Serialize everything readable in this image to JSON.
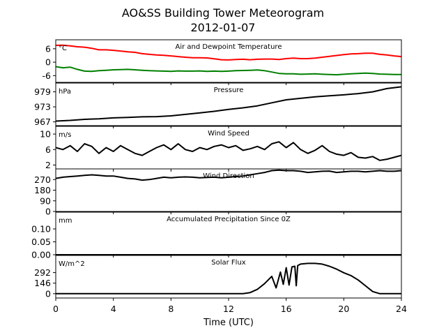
{
  "title": "AO&SS Building Tower Meteorogram",
  "subtitle": "2012-01-07",
  "chart_data": {
    "type": "line",
    "xlabel": "Time (UTC)",
    "xlim": [
      0,
      24
    ],
    "xticks": [
      0,
      4,
      8,
      12,
      16,
      20,
      24
    ],
    "panels": [
      {
        "title": "Air and Dewpoint Temperature",
        "unit": "°C",
        "ylim": [
          -9,
          10
        ],
        "yticks": [
          6,
          0,
          -6
        ],
        "series": [
          {
            "color": "#ff0000",
            "x": [
              0,
              0.5,
              1,
              1.5,
              2,
              2.5,
              3,
              3.5,
              4,
              4.5,
              5,
              5.5,
              6,
              6.5,
              7,
              7.5,
              8,
              8.5,
              9,
              9.5,
              10,
              10.5,
              11,
              11.5,
              12,
              12.5,
              13,
              13.5,
              14,
              14.5,
              15,
              15.5,
              16,
              16.5,
              17,
              17.5,
              18,
              18.5,
              19,
              19.5,
              20,
              20.5,
              21,
              21.5,
              22,
              22.5,
              23,
              23.5,
              24
            ],
            "y": [
              7.5,
              7.6,
              7.3,
              6.9,
              6.7,
              6.2,
              5.5,
              5.5,
              5.3,
              5.0,
              4.6,
              4.4,
              3.8,
              3.5,
              3.2,
              3.1,
              2.8,
              2.5,
              2.2,
              2.0,
              2.0,
              1.9,
              1.5,
              1.1,
              1.0,
              1.2,
              1.3,
              1.1,
              1.3,
              1.4,
              1.4,
              1.2,
              1.6,
              1.8,
              1.6,
              1.6,
              1.8,
              2.2,
              2.6,
              3.0,
              3.4,
              3.7,
              3.8,
              4.0,
              4.0,
              3.5,
              3.2,
              2.8,
              2.5
            ]
          },
          {
            "color": "#008000",
            "x": [
              0,
              0.5,
              1,
              1.5,
              2,
              2.5,
              3,
              3.5,
              4,
              4.5,
              5,
              5.5,
              6,
              6.5,
              7,
              7.5,
              8,
              8.5,
              9,
              9.5,
              10,
              10.5,
              11,
              11.5,
              12,
              12.5,
              13,
              13.5,
              14,
              14.5,
              15,
              15.5,
              16,
              16.5,
              17,
              17.5,
              18,
              18.5,
              19,
              19.5,
              20,
              20.5,
              21,
              21.5,
              22,
              22.5,
              23,
              23.5,
              24
            ],
            "y": [
              -2.0,
              -2.5,
              -2.2,
              -3.2,
              -4.0,
              -4.1,
              -3.8,
              -3.6,
              -3.4,
              -3.3,
              -3.2,
              -3.4,
              -3.6,
              -3.8,
              -3.9,
              -4.0,
              -4.1,
              -3.9,
              -4.0,
              -4.0,
              -3.9,
              -4.1,
              -4.0,
              -4.1,
              -4.0,
              -3.8,
              -3.7,
              -3.6,
              -3.5,
              -3.8,
              -4.4,
              -5.0,
              -5.2,
              -5.2,
              -5.4,
              -5.3,
              -5.2,
              -5.4,
              -5.5,
              -5.6,
              -5.4,
              -5.2,
              -5.0,
              -4.9,
              -5.0,
              -5.3,
              -5.4,
              -5.5,
              -5.5
            ]
          }
        ]
      },
      {
        "title": "Pressure",
        "unit": "hPa",
        "ylim": [
          965.5,
          982.5
        ],
        "yticks": [
          979,
          973,
          967
        ],
        "series": [
          {
            "color": "#000000",
            "x": [
              0,
              1,
              2,
              3,
              4,
              5,
              6,
              7,
              8,
              9,
              10,
              11,
              12,
              13,
              14,
              15,
              16,
              17,
              18,
              19,
              20,
              21,
              22,
              23,
              24
            ],
            "y": [
              967.3,
              967.6,
              968.0,
              968.2,
              968.6,
              968.8,
              969.0,
              969.1,
              969.4,
              970.0,
              970.6,
              971.2,
              972.0,
              972.6,
              973.4,
              974.6,
              975.8,
              976.4,
              977.0,
              977.4,
              977.8,
              978.3,
              979.0,
              980.3,
              981.0
            ]
          }
        ]
      },
      {
        "title": "Wind Speed",
        "unit": "m/s",
        "ylim": [
          1,
          12
        ],
        "yticks": [
          10,
          6,
          2
        ],
        "series": [
          {
            "color": "#000000",
            "x": [
              0,
              0.5,
              1,
              1.5,
              2,
              2.5,
              3,
              3.5,
              4,
              4.5,
              5,
              5.5,
              6,
              6.5,
              7,
              7.5,
              8,
              8.5,
              9,
              9.5,
              10,
              10.5,
              11,
              11.5,
              12,
              12.5,
              13,
              13.5,
              14,
              14.5,
              15,
              15.5,
              16,
              16.5,
              17,
              17.5,
              18,
              18.5,
              19,
              19.5,
              20,
              20.5,
              21,
              21.5,
              22,
              22.5,
              23,
              23.5,
              24
            ],
            "y": [
              6.5,
              6.0,
              7.0,
              5.5,
              7.5,
              6.8,
              5.0,
              6.5,
              5.5,
              7.0,
              6.0,
              5.0,
              4.5,
              5.5,
              6.5,
              7.2,
              6.0,
              7.5,
              6.0,
              5.5,
              6.5,
              6.0,
              6.8,
              7.2,
              6.5,
              7.0,
              5.8,
              6.2,
              6.8,
              6.0,
              7.5,
              8.0,
              6.5,
              7.8,
              6.0,
              5.0,
              5.8,
              7.0,
              5.5,
              4.8,
              4.5,
              5.2,
              4.0,
              3.8,
              4.2,
              3.2,
              3.5,
              4.0,
              4.5
            ]
          }
        ]
      },
      {
        "title": "Wind Direction",
        "unit": "",
        "ylim": [
          0,
          360
        ],
        "yticks": [
          270,
          180,
          90,
          0
        ],
        "series": [
          {
            "color": "#000000",
            "x": [
              0,
              0.5,
              1,
              1.5,
              2,
              2.5,
              3,
              3.5,
              4,
              4.5,
              5,
              5.5,
              6,
              6.5,
              7,
              7.5,
              8,
              8.5,
              9,
              9.5,
              10,
              10.5,
              11,
              11.5,
              12,
              12.5,
              13,
              13.5,
              14,
              14.5,
              15,
              15.5,
              16,
              16.5,
              17,
              17.5,
              18,
              18.5,
              19,
              19.5,
              20,
              20.5,
              21,
              21.5,
              22,
              22.5,
              23,
              23.5,
              24
            ],
            "y": [
              280,
              290,
              295,
              300,
              305,
              310,
              305,
              300,
              300,
              290,
              280,
              275,
              265,
              270,
              280,
              290,
              285,
              290,
              292,
              290,
              285,
              288,
              290,
              285,
              290,
              295,
              300,
              310,
              320,
              330,
              345,
              350,
              345,
              345,
              340,
              330,
              335,
              340,
              342,
              330,
              335,
              340,
              340,
              335,
              340,
              345,
              340,
              340,
              345
            ]
          }
        ]
      },
      {
        "title": "Accumulated Precipitation Since 0Z",
        "unit": "mm",
        "ylim": [
          0,
          0.165
        ],
        "yticks": [
          0.1,
          0.05,
          0.0
        ],
        "series": [
          {
            "color": "#000000",
            "x": [
              0,
              24
            ],
            "y": [
              0,
              0
            ]
          }
        ]
      },
      {
        "title": "Solar Flux",
        "unit": "W/m^2",
        "ylim": [
          -60,
          530
        ],
        "yticks": [
          292,
          146,
          0
        ],
        "series": [
          {
            "color": "#000000",
            "x": [
              0,
              13.0,
              13.5,
              14.0,
              14.5,
              15.0,
              15.3,
              15.6,
              15.8,
              16.0,
              16.2,
              16.4,
              16.6,
              16.7,
              16.8,
              17.0,
              17.5,
              18.0,
              18.5,
              19.0,
              19.5,
              20.0,
              20.5,
              21.0,
              21.5,
              22.0,
              22.5,
              23.0,
              24
            ],
            "y": [
              0,
              0,
              15,
              60,
              140,
              240,
              80,
              300,
              130,
              360,
              120,
              370,
              380,
              110,
              390,
              410,
              420,
              420,
              410,
              380,
              340,
              290,
              250,
              190,
              110,
              30,
              0,
              0,
              0
            ]
          }
        ]
      }
    ]
  }
}
